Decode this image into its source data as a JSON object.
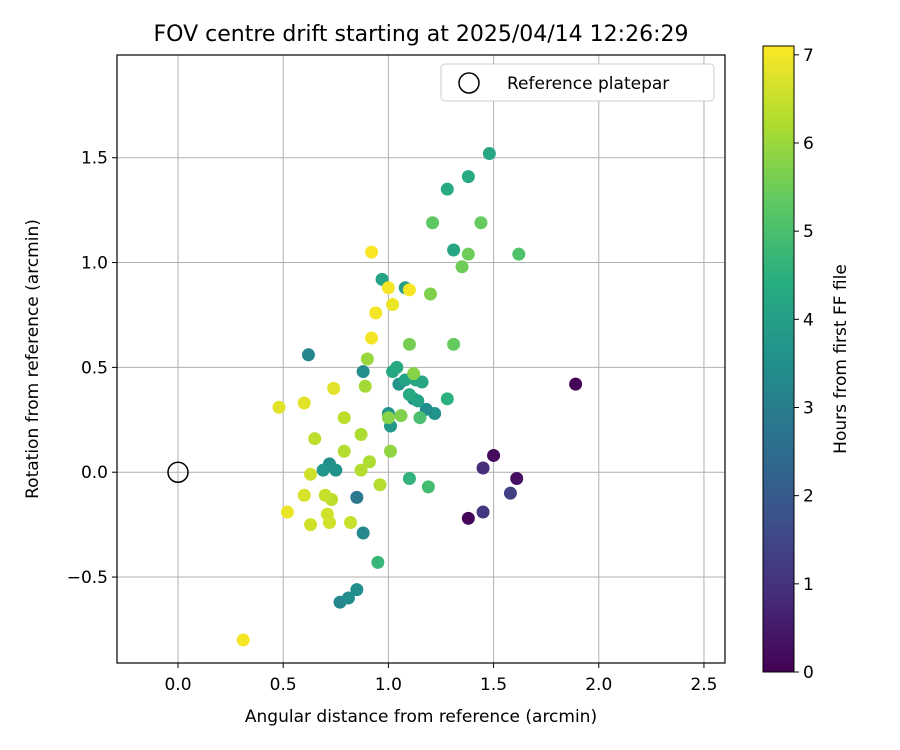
{
  "chart_data": {
    "type": "scatter",
    "title": "FOV centre drift starting at 2025/04/14 12:26:29",
    "xlabel": "Angular distance from reference (arcmin)",
    "ylabel": "Rotation from reference (arcmin)",
    "xlim": [
      -0.29,
      2.6
    ],
    "ylim": [
      -0.91,
      1.99
    ],
    "xticks": [
      0.0,
      0.5,
      1.0,
      1.5,
      2.0,
      2.5
    ],
    "xtick_labels": [
      "0.0",
      "0.5",
      "1.0",
      "1.5",
      "2.0",
      "2.5"
    ],
    "yticks": [
      -0.5,
      0.0,
      0.5,
      1.0,
      1.5
    ],
    "ytick_labels": [
      "−0.5",
      "0.0",
      "0.5",
      "1.0",
      "1.5"
    ],
    "grid": true,
    "legend": {
      "placement": "top-right",
      "entries": [
        "Reference platepar"
      ]
    },
    "reference_point": {
      "x": 0.0,
      "y": 0.0
    },
    "colorbar": {
      "label": "Hours from first FF file",
      "colormap": "viridis",
      "range": [
        0,
        7.1
      ],
      "ticks": [
        0,
        1,
        2,
        3,
        4,
        5,
        6,
        7
      ],
      "tick_labels": [
        "0",
        "1",
        "2",
        "3",
        "4",
        "5",
        "6",
        "7"
      ]
    },
    "points": [
      {
        "x": 1.89,
        "y": 0.42,
        "h": 0.05
      },
      {
        "x": 1.38,
        "y": -0.22,
        "h": 0.1
      },
      {
        "x": 1.5,
        "y": 0.08,
        "h": 0.2
      },
      {
        "x": 1.61,
        "y": -0.03,
        "h": 0.3
      },
      {
        "x": 1.45,
        "y": 0.02,
        "h": 0.9
      },
      {
        "x": 1.45,
        "y": -0.19,
        "h": 1.1
      },
      {
        "x": 1.58,
        "y": -0.1,
        "h": 1.3
      },
      {
        "x": 0.85,
        "y": -0.12,
        "h": 2.8
      },
      {
        "x": 0.62,
        "y": 0.56,
        "h": 3.2
      },
      {
        "x": 0.77,
        "y": -0.62,
        "h": 3.3
      },
      {
        "x": 0.81,
        "y": -0.6,
        "h": 3.4
      },
      {
        "x": 0.85,
        "y": -0.56,
        "h": 3.4
      },
      {
        "x": 0.88,
        "y": -0.29,
        "h": 3.3
      },
      {
        "x": 0.88,
        "y": 0.48,
        "h": 3.4
      },
      {
        "x": 0.72,
        "y": 0.04,
        "h": 3.5
      },
      {
        "x": 0.75,
        "y": 0.01,
        "h": 3.6
      },
      {
        "x": 0.69,
        "y": 0.01,
        "h": 3.7
      },
      {
        "x": 1.0,
        "y": 0.28,
        "h": 3.6
      },
      {
        "x": 1.01,
        "y": 0.22,
        "h": 3.8
      },
      {
        "x": 1.05,
        "y": 0.42,
        "h": 3.7
      },
      {
        "x": 1.12,
        "y": 0.35,
        "h": 3.5
      },
      {
        "x": 1.22,
        "y": 0.28,
        "h": 3.6
      },
      {
        "x": 1.18,
        "y": 0.3,
        "h": 3.4
      },
      {
        "x": 1.08,
        "y": 0.88,
        "h": 4.0
      },
      {
        "x": 0.97,
        "y": 0.92,
        "h": 4.1
      },
      {
        "x": 1.02,
        "y": 0.48,
        "h": 4.2
      },
      {
        "x": 1.04,
        "y": 0.5,
        "h": 4.3
      },
      {
        "x": 1.08,
        "y": 0.44,
        "h": 4.1
      },
      {
        "x": 1.13,
        "y": 0.44,
        "h": 4.2
      },
      {
        "x": 1.16,
        "y": 0.43,
        "h": 4.2
      },
      {
        "x": 1.1,
        "y": 0.37,
        "h": 4.3
      },
      {
        "x": 1.14,
        "y": 0.34,
        "h": 4.1
      },
      {
        "x": 1.28,
        "y": 1.35,
        "h": 4.3
      },
      {
        "x": 1.38,
        "y": 1.41,
        "h": 4.3
      },
      {
        "x": 1.48,
        "y": 1.52,
        "h": 4.2
      },
      {
        "x": 1.31,
        "y": 1.06,
        "h": 4.2
      },
      {
        "x": 1.28,
        "y": 0.35,
        "h": 4.5
      },
      {
        "x": 1.1,
        "y": -0.03,
        "h": 4.6
      },
      {
        "x": 0.95,
        "y": -0.43,
        "h": 4.7
      },
      {
        "x": 1.19,
        "y": -0.07,
        "h": 4.9
      },
      {
        "x": 1.15,
        "y": 0.26,
        "h": 5.0
      },
      {
        "x": 1.62,
        "y": 1.04,
        "h": 5.1
      },
      {
        "x": 1.21,
        "y": 1.19,
        "h": 5.3
      },
      {
        "x": 1.44,
        "y": 1.19,
        "h": 5.4
      },
      {
        "x": 1.38,
        "y": 1.04,
        "h": 5.5
      },
      {
        "x": 1.35,
        "y": 0.98,
        "h": 5.5
      },
      {
        "x": 1.31,
        "y": 0.61,
        "h": 5.4
      },
      {
        "x": 1.2,
        "y": 0.85,
        "h": 5.7
      },
      {
        "x": 1.1,
        "y": 0.61,
        "h": 5.6
      },
      {
        "x": 1.12,
        "y": 0.47,
        "h": 5.8
      },
      {
        "x": 1.06,
        "y": 0.27,
        "h": 5.7
      },
      {
        "x": 1.0,
        "y": 0.26,
        "h": 5.8
      },
      {
        "x": 1.01,
        "y": 0.1,
        "h": 5.9
      },
      {
        "x": 0.9,
        "y": 0.54,
        "h": 6.0
      },
      {
        "x": 0.89,
        "y": 0.41,
        "h": 6.1
      },
      {
        "x": 0.87,
        "y": 0.18,
        "h": 6.2
      },
      {
        "x": 0.91,
        "y": 0.05,
        "h": 6.2
      },
      {
        "x": 0.87,
        "y": 0.01,
        "h": 6.3
      },
      {
        "x": 0.96,
        "y": -0.06,
        "h": 6.3
      },
      {
        "x": 0.79,
        "y": 0.26,
        "h": 6.4
      },
      {
        "x": 0.79,
        "y": 0.1,
        "h": 6.3
      },
      {
        "x": 0.65,
        "y": 0.16,
        "h": 6.4
      },
      {
        "x": 0.82,
        "y": -0.24,
        "h": 6.5
      },
      {
        "x": 0.73,
        "y": -0.13,
        "h": 6.4
      },
      {
        "x": 0.7,
        "y": -0.11,
        "h": 6.5
      },
      {
        "x": 0.72,
        "y": -0.24,
        "h": 6.6
      },
      {
        "x": 0.71,
        "y": -0.2,
        "h": 6.6
      },
      {
        "x": 0.63,
        "y": -0.25,
        "h": 6.6
      },
      {
        "x": 0.63,
        "y": -0.01,
        "h": 6.6
      },
      {
        "x": 0.6,
        "y": -0.11,
        "h": 6.7
      },
      {
        "x": 0.74,
        "y": 0.4,
        "h": 6.8
      },
      {
        "x": 0.6,
        "y": 0.33,
        "h": 6.8
      },
      {
        "x": 0.48,
        "y": 0.31,
        "h": 6.8
      },
      {
        "x": 0.52,
        "y": -0.19,
        "h": 6.9
      },
      {
        "x": 0.31,
        "y": -0.8,
        "h": 7.0
      },
      {
        "x": 0.92,
        "y": 0.64,
        "h": 7.0
      },
      {
        "x": 0.94,
        "y": 0.76,
        "h": 7.0
      },
      {
        "x": 1.02,
        "y": 0.8,
        "h": 6.9
      },
      {
        "x": 1.0,
        "y": 0.88,
        "h": 7.0
      },
      {
        "x": 1.1,
        "y": 0.87,
        "h": 7.05
      },
      {
        "x": 0.92,
        "y": 1.05,
        "h": 7.05
      }
    ]
  }
}
